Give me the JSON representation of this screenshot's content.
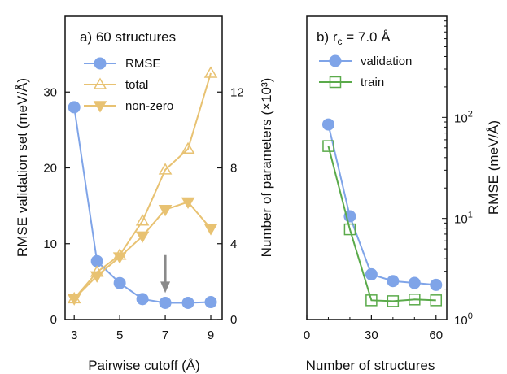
{
  "chart_data": [
    {
      "panel": "a",
      "type": "line",
      "title": "a) 60 structures",
      "xlabel": "Pairwise cutoff (Å)",
      "ylabel_left": "RMSE validation set (meV/Å)",
      "ylabel_right": "Number of parameters (×10³)",
      "xlim": [
        2.6,
        9.5
      ],
      "ylim_left": [
        0,
        40
      ],
      "ylim_right": [
        0,
        16
      ],
      "x_ticks": [
        "3",
        "5",
        "7",
        "9"
      ],
      "y_ticks_left": [
        "0",
        "10",
        "20",
        "30"
      ],
      "y_ticks_right": [
        "0",
        "4",
        "8",
        "12"
      ],
      "x": [
        3,
        4,
        5,
        6,
        7,
        8,
        9
      ],
      "legend_position": "top-left",
      "series": [
        {
          "name": "RMSE",
          "axis": "left",
          "color": "#7fa4e8",
          "marker": "circle",
          "values": [
            28.0,
            7.7,
            4.8,
            2.7,
            2.2,
            2.2,
            2.3
          ]
        },
        {
          "name": "total",
          "axis": "right",
          "color": "#e8c272",
          "marker": "triangle-up",
          "values": [
            1.1,
            2.5,
            3.4,
            5.2,
            7.9,
            9.0,
            13.0
          ]
        },
        {
          "name": "non-zero",
          "axis": "right",
          "color": "#e8c272",
          "marker": "triangle-down",
          "values": [
            1.1,
            2.3,
            3.3,
            4.4,
            5.8,
            6.2,
            4.8
          ]
        }
      ],
      "annotation": {
        "type": "arrow",
        "color": "#8a8a8a",
        "x": 7,
        "y_from": 8.5,
        "y_to": 3.5
      }
    },
    {
      "panel": "b",
      "type": "line",
      "title": "b) r",
      "title_subscript": "c",
      "title_rest": " = 7.0 Å",
      "xlabel": "Number of structures",
      "ylabel": "RMSE (meV/Å)",
      "scale_y": "log",
      "xlim": [
        0,
        65
      ],
      "ylim": [
        1,
        1000
      ],
      "x_ticks": [
        "0",
        "30",
        "60"
      ],
      "y_ticks": [
        {
          "value": 1,
          "base": "10",
          "exp": "0"
        },
        {
          "value": 10,
          "base": "10",
          "exp": "1"
        },
        {
          "value": 100,
          "base": "10",
          "exp": "2"
        }
      ],
      "x": [
        10,
        20,
        30,
        40,
        50,
        60
      ],
      "legend_position": "top-left",
      "series": [
        {
          "name": "validation",
          "color": "#7fa4e8",
          "marker": "circle",
          "values": [
            85,
            10.5,
            2.8,
            2.4,
            2.3,
            2.2
          ]
        },
        {
          "name": "train",
          "color": "#5aaa4a",
          "marker": "square",
          "values": [
            52,
            7.8,
            1.55,
            1.52,
            1.58,
            1.55
          ]
        }
      ]
    }
  ]
}
